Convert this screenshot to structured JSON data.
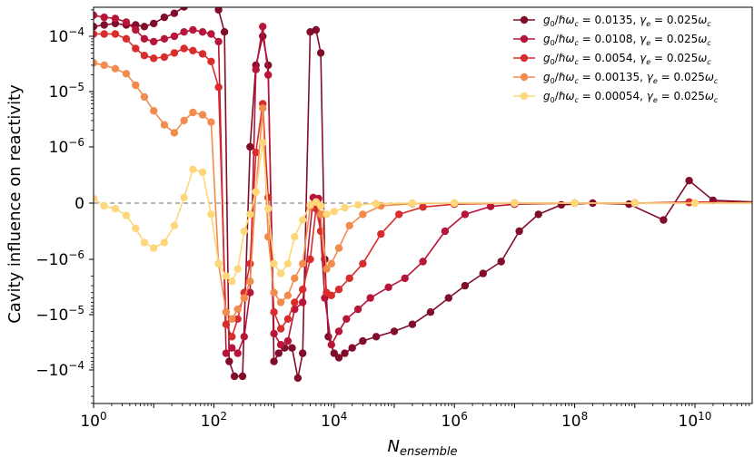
{
  "chart_data": {
    "type": "line",
    "xlabel": "N_ensemble",
    "ylabel": "Cavity influence on reactivity",
    "x_scale": "log",
    "y_scale": "symlog",
    "y_linthresh": 1e-06,
    "xlim": [
      1,
      600000000000.0
    ],
    "ylim": [
      -0.0006,
      0.0006
    ],
    "x_ticks": [
      {
        "value": 1,
        "base": "10",
        "exp": "0"
      },
      {
        "value": 100,
        "base": "10",
        "exp": "2"
      },
      {
        "value": 10000,
        "base": "10",
        "exp": "4"
      },
      {
        "value": 1000000,
        "base": "10",
        "exp": "6"
      },
      {
        "value": 100000000,
        "base": "10",
        "exp": "8"
      },
      {
        "value": 10000000000,
        "base": "10",
        "exp": "10"
      }
    ],
    "y_ticks": [
      {
        "value": 0.0001,
        "base": "10",
        "exp": "−4"
      },
      {
        "value": 1e-05,
        "base": "10",
        "exp": "−5"
      },
      {
        "value": 1e-06,
        "base": "10",
        "exp": "−6"
      },
      {
        "value": 0,
        "plain": "0"
      },
      {
        "value": -1e-06,
        "base": "−10",
        "exp": "−6"
      },
      {
        "value": -1e-05,
        "base": "−10",
        "exp": "−5"
      },
      {
        "value": -0.0001,
        "base": "−10",
        "exp": "−4"
      }
    ],
    "zero_line": true,
    "legend_position": "top-right",
    "series": [
      {
        "label": {
          "g": "0.0135",
          "gamma": "0.025"
        },
        "color": "#800d2a",
        "points": [
          [
            1,
            0.00015
          ],
          [
            1.5,
            0.00016
          ],
          [
            2.3,
            0.00017
          ],
          [
            3.5,
            0.00016
          ],
          [
            5,
            0.00016
          ],
          [
            7,
            0.00015
          ],
          [
            10,
            0.00017
          ],
          [
            15,
            0.00022
          ],
          [
            22,
            0.00026
          ],
          [
            32,
            0.00034
          ],
          [
            45,
            0.0004
          ],
          [
            65,
            0.00045
          ],
          [
            90,
            0.00045
          ],
          [
            120,
            0.0003
          ],
          [
            150,
            0.00012
          ],
          [
            180,
            -7e-05
          ],
          [
            220,
            -0.00013
          ],
          [
            300,
            -0.00013
          ],
          [
            400,
            1e-06
          ],
          [
            500,
            3e-05
          ],
          [
            650,
            0.0001
          ],
          [
            800,
            3e-05
          ],
          [
            1000,
            -7e-05
          ],
          [
            1200,
            -5e-05
          ],
          [
            1500,
            -4e-05
          ],
          [
            2000,
            -4e-05
          ],
          [
            2500,
            -0.00014
          ],
          [
            3000,
            -5e-05
          ],
          [
            4000,
            0.00012
          ],
          [
            5000,
            0.00013
          ],
          [
            6000,
            5e-05
          ],
          [
            7000,
            -1e-06
          ],
          [
            8000,
            -2.5e-05
          ],
          [
            10000,
            -5e-05
          ],
          [
            12000,
            -6e-05
          ],
          [
            15000,
            -5e-05
          ],
          [
            20000,
            -4e-05
          ],
          [
            30000,
            -3e-05
          ],
          [
            50000,
            -2.5e-05
          ],
          [
            100000,
            -2e-05
          ],
          [
            200000,
            -1.5e-05
          ],
          [
            400000,
            -9e-06
          ],
          [
            800000,
            -5e-06
          ],
          [
            1500000,
            -3e-06
          ],
          [
            3000000,
            -1.8e-06
          ],
          [
            6000000,
            -1.1e-06
          ],
          [
            12000000,
            -5e-07
          ],
          [
            25000000,
            -2e-07
          ],
          [
            60000000,
            -3e-08
          ],
          [
            200000000,
            0
          ],
          [
            800000000,
            -2e-08
          ],
          [
            3000000000,
            -3e-07
          ],
          [
            8000000000,
            4e-07
          ],
          [
            20000000000,
            5e-08
          ],
          [
            100000000000,
            2e-08
          ]
        ]
      },
      {
        "label": {
          "g": "0.0108",
          "gamma": "0.025"
        },
        "color": "#b8153a",
        "points": [
          [
            1,
            0.00024
          ],
          [
            1.5,
            0.00022
          ],
          [
            2.3,
            0.00021
          ],
          [
            3.5,
            0.00018
          ],
          [
            5,
            0.00013
          ],
          [
            7,
            9e-05
          ],
          [
            10,
            8e-05
          ],
          [
            15,
            9e-05
          ],
          [
            22,
            0.0001
          ],
          [
            32,
            0.00012
          ],
          [
            45,
            0.00013
          ],
          [
            65,
            0.00012
          ],
          [
            90,
            0.00011
          ],
          [
            120,
            8e-05
          ],
          [
            160,
            -5e-05
          ],
          [
            200,
            -4e-05
          ],
          [
            250,
            -5e-05
          ],
          [
            320,
            -2.5e-05
          ],
          [
            400,
            -4e-06
          ],
          [
            500,
            2.5e-05
          ],
          [
            650,
            0.00015
          ],
          [
            800,
            2e-05
          ],
          [
            1000,
            -2.2e-05
          ],
          [
            1300,
            -3.5e-05
          ],
          [
            1700,
            -3e-05
          ],
          [
            2200,
            -8e-06
          ],
          [
            3000,
            -6e-06
          ],
          [
            4500,
            1e-07
          ],
          [
            5500,
            8e-08
          ],
          [
            7000,
            -5e-06
          ],
          [
            9000,
            -3.5e-05
          ],
          [
            12000,
            -2e-05
          ],
          [
            16000,
            -1.2e-05
          ],
          [
            25000,
            -8e-06
          ],
          [
            40000,
            -5e-06
          ],
          [
            80000,
            -3.2e-06
          ],
          [
            150000,
            -2.2e-06
          ],
          [
            300000,
            -1.1e-06
          ],
          [
            700000,
            -5e-07
          ],
          [
            1500000,
            -2e-07
          ],
          [
            4000000,
            -6e-08
          ],
          [
            10000000,
            -2e-08
          ],
          [
            100000000,
            0
          ],
          [
            1000000000,
            0
          ],
          [
            8000000000,
            2e-08
          ],
          [
            100000000000,
            1e-08
          ]
        ]
      },
      {
        "label": {
          "g": "0.0054",
          "gamma": "0.025"
        },
        "color": "#d92d2d",
        "points": [
          [
            1,
            0.00011
          ],
          [
            1.5,
            0.00011
          ],
          [
            2.3,
            0.00011
          ],
          [
            3.5,
            9e-05
          ],
          [
            5,
            6e-05
          ],
          [
            7,
            4.5e-05
          ],
          [
            10,
            4e-05
          ],
          [
            15,
            4.2e-05
          ],
          [
            22,
            5e-05
          ],
          [
            32,
            6e-05
          ],
          [
            45,
            5.5e-05
          ],
          [
            65,
            4.8e-05
          ],
          [
            90,
            3.5e-05
          ],
          [
            120,
            1.2e-05
          ],
          [
            160,
            -1.5e-05
          ],
          [
            200,
            -2.5e-05
          ],
          [
            250,
            -1.2e-05
          ],
          [
            320,
            -4e-06
          ],
          [
            400,
            -1.2e-06
          ],
          [
            500,
            9e-07
          ],
          [
            650,
            6e-06
          ],
          [
            800,
            1e-07
          ],
          [
            1000,
            -9e-06
          ],
          [
            1300,
            -1.8e-05
          ],
          [
            1700,
            -1.2e-05
          ],
          [
            2200,
            -6e-06
          ],
          [
            3000,
            -3.5e-06
          ],
          [
            4000,
            -1e-06
          ],
          [
            5000,
            -1e-07
          ],
          [
            6000,
            -5e-07
          ],
          [
            7500,
            -4e-06
          ],
          [
            9000,
            -4.5e-06
          ],
          [
            12000,
            -3.5e-06
          ],
          [
            18000,
            -2.2e-06
          ],
          [
            30000,
            -1.2e-06
          ],
          [
            60000,
            -5.5e-07
          ],
          [
            120000,
            -2e-07
          ],
          [
            300000,
            -7e-08
          ],
          [
            1000000,
            -2e-08
          ],
          [
            10000000,
            0
          ],
          [
            100000000,
            0
          ],
          [
            1000000000,
            0
          ],
          [
            8000000000,
            1e-08
          ],
          [
            100000000000,
            5e-09
          ]
        ]
      },
      {
        "label": {
          "g": "0.00135",
          "gamma": "0.025"
        },
        "color": "#f18c4d",
        "points": [
          [
            1,
            3.3e-05
          ],
          [
            1.5,
            3e-05
          ],
          [
            2.3,
            2.6e-05
          ],
          [
            3.5,
            2.1e-05
          ],
          [
            5,
            1.3e-05
          ],
          [
            7,
            8e-06
          ],
          [
            10,
            4.5e-06
          ],
          [
            15,
            2.5e-06
          ],
          [
            22,
            1.8e-06
          ],
          [
            32,
            3e-06
          ],
          [
            45,
            4.2e-06
          ],
          [
            65,
            3.8e-06
          ],
          [
            90,
            2.8e-06
          ],
          [
            120,
            -1.2e-06
          ],
          [
            160,
            -9e-06
          ],
          [
            200,
            -1.2e-05
          ],
          [
            250,
            -8e-06
          ],
          [
            320,
            -5e-06
          ],
          [
            400,
            -2.5e-06
          ],
          [
            500,
            2e-07
          ],
          [
            650,
            5e-06
          ],
          [
            800,
            -6e-07
          ],
          [
            1000,
            -4e-06
          ],
          [
            1300,
            -6e-06
          ],
          [
            1700,
            -4.5e-06
          ],
          [
            2200,
            -2.2e-06
          ],
          [
            3000,
            -1.2e-06
          ],
          [
            4000,
            -6e-08
          ],
          [
            5000,
            2e-08
          ],
          [
            6000,
            -2e-07
          ],
          [
            7500,
            -1.5e-06
          ],
          [
            9000,
            -1.2e-06
          ],
          [
            12000,
            -8e-07
          ],
          [
            18000,
            -4e-07
          ],
          [
            30000,
            -2e-07
          ],
          [
            60000,
            -5e-08
          ],
          [
            200000,
            -1e-08
          ],
          [
            1000000,
            0
          ],
          [
            10000000,
            0
          ],
          [
            100000000,
            0
          ],
          [
            1000000000,
            0
          ],
          [
            10000000000,
            0
          ],
          [
            100000000000,
            0
          ]
        ]
      },
      {
        "label": {
          "g": "0.00054",
          "gamma": "0.025"
        },
        "color": "#fdd87a",
        "points": [
          [
            1,
            8e-08
          ],
          [
            1.5,
            -5e-08
          ],
          [
            2.3,
            -1e-07
          ],
          [
            3.5,
            -2.2e-07
          ],
          [
            5,
            -4.5e-07
          ],
          [
            7,
            -7e-07
          ],
          [
            10,
            -8e-07
          ],
          [
            15,
            -7e-07
          ],
          [
            22,
            -4e-07
          ],
          [
            32,
            1e-07
          ],
          [
            45,
            6e-07
          ],
          [
            65,
            5.5e-07
          ],
          [
            90,
            -2e-07
          ],
          [
            120,
            -1.2e-06
          ],
          [
            160,
            -2e-06
          ],
          [
            200,
            -2.5e-06
          ],
          [
            250,
            -1.5e-06
          ],
          [
            320,
            -5e-07
          ],
          [
            400,
            -2e-07
          ],
          [
            500,
            2e-07
          ],
          [
            650,
            1.2e-06
          ],
          [
            800,
            -1e-07
          ],
          [
            1000,
            -1.2e-06
          ],
          [
            1300,
            -1.8e-06
          ],
          [
            1700,
            -1.2e-06
          ],
          [
            2200,
            -6e-07
          ],
          [
            3000,
            -3e-07
          ],
          [
            4000,
            -3e-08
          ],
          [
            5000,
            2e-08
          ],
          [
            6000,
            -5e-08
          ],
          [
            7500,
            -2e-07
          ],
          [
            10000,
            -1.5e-07
          ],
          [
            15000,
            -8e-08
          ],
          [
            25000,
            -3e-08
          ],
          [
            50000,
            -1e-08
          ],
          [
            200000,
            0
          ],
          [
            1000000,
            0
          ],
          [
            10000000,
            0
          ],
          [
            100000000,
            0
          ],
          [
            1000000000,
            0
          ],
          [
            10000000000,
            0
          ],
          [
            100000000000,
            0
          ]
        ]
      }
    ]
  }
}
